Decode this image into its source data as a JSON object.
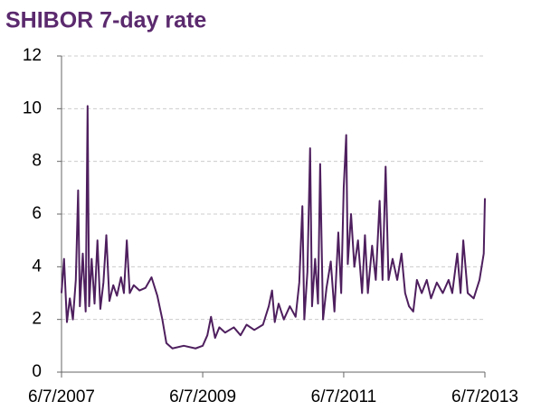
{
  "chart_data": {
    "type": "line",
    "title": "SHIBOR 7-day rate",
    "color": "#4e1f5e",
    "grid": true,
    "x": [
      "2007-06-07",
      "2007-06-20",
      "2007-07-05",
      "2007-07-20",
      "2007-08-05",
      "2007-08-20",
      "2007-09-01",
      "2007-09-10",
      "2007-09-25",
      "2007-10-10",
      "2007-10-20",
      "2007-10-28",
      "2007-11-10",
      "2007-11-25",
      "2007-12-10",
      "2007-12-25",
      "2008-01-10",
      "2008-01-25",
      "2008-02-10",
      "2008-03-01",
      "2008-03-20",
      "2008-04-10",
      "2008-04-25",
      "2008-05-10",
      "2008-05-25",
      "2008-06-15",
      "2008-07-15",
      "2008-08-15",
      "2008-09-15",
      "2008-10-15",
      "2008-11-10",
      "2008-12-01",
      "2009-01-01",
      "2009-03-01",
      "2009-05-01",
      "2009-06-07",
      "2009-07-01",
      "2009-07-20",
      "2009-08-10",
      "2009-09-01",
      "2009-10-01",
      "2009-11-15",
      "2009-12-20",
      "2010-01-20",
      "2010-03-01",
      "2010-04-15",
      "2010-05-15",
      "2010-06-01",
      "2010-06-15",
      "2010-07-05",
      "2010-08-01",
      "2010-09-01",
      "2010-10-01",
      "2010-10-20",
      "2010-11-05",
      "2010-11-15",
      "2010-12-01",
      "2010-12-15",
      "2010-12-25",
      "2011-01-10",
      "2011-01-25",
      "2011-02-05",
      "2011-02-20",
      "2011-03-10",
      "2011-04-01",
      "2011-04-20",
      "2011-05-10",
      "2011-05-25",
      "2011-06-07",
      "2011-06-20",
      "2011-06-28",
      "2011-07-15",
      "2011-08-01",
      "2011-08-20",
      "2011-09-10",
      "2011-09-25",
      "2011-10-10",
      "2011-11-01",
      "2011-11-20",
      "2011-12-10",
      "2011-12-25",
      "2012-01-10",
      "2012-01-25",
      "2012-02-15",
      "2012-03-10",
      "2012-04-01",
      "2012-04-20",
      "2012-05-10",
      "2012-06-01",
      "2012-06-20",
      "2012-07-15",
      "2012-08-10",
      "2012-09-01",
      "2012-10-01",
      "2012-11-01",
      "2012-12-01",
      "2012-12-20",
      "2013-01-15",
      "2013-02-01",
      "2013-02-15",
      "2013-03-10",
      "2013-04-10",
      "2013-05-10",
      "2013-06-01",
      "2013-06-07"
    ],
    "values": [
      3.0,
      4.3,
      1.9,
      2.8,
      2.0,
      3.5,
      6.9,
      2.5,
      4.5,
      2.3,
      10.1,
      2.5,
      4.3,
      2.6,
      5.0,
      2.4,
      3.4,
      5.2,
      2.7,
      3.3,
      2.9,
      3.6,
      3.0,
      5.0,
      3.0,
      3.3,
      3.1,
      3.2,
      3.6,
      2.9,
      2.0,
      1.1,
      0.9,
      1.0,
      0.9,
      1.0,
      1.4,
      2.1,
      1.3,
      1.7,
      1.5,
      1.7,
      1.4,
      1.8,
      1.6,
      1.8,
      2.5,
      3.1,
      1.9,
      2.6,
      2.0,
      2.5,
      2.1,
      3.4,
      6.3,
      2.0,
      3.8,
      8.5,
      2.5,
      4.3,
      2.6,
      7.9,
      2.0,
      3.2,
      4.2,
      2.3,
      5.3,
      3.0,
      7.0,
      9.0,
      4.1,
      6.0,
      4.0,
      5.0,
      3.0,
      5.2,
      3.0,
      4.8,
      3.5,
      6.5,
      3.5,
      7.8,
      3.5,
      4.3,
      3.5,
      4.5,
      3.0,
      2.5,
      2.3,
      3.5,
      3.0,
      3.5,
      2.8,
      3.4,
      3.0,
      3.5,
      3.0,
      4.5,
      3.0,
      5.0,
      3.0,
      2.8,
      3.5,
      4.5,
      6.6
    ],
    "xlim": [
      "2007-06-07",
      "2013-06-07"
    ],
    "xticks": [
      {
        "value": "2007-06-07",
        "label": "6/7/2007"
      },
      {
        "value": "2009-06-07",
        "label": "6/7/2009"
      },
      {
        "value": "2011-06-07",
        "label": "6/7/2011"
      },
      {
        "value": "2013-06-07",
        "label": "6/7/2013"
      }
    ],
    "ylim": [
      0,
      12
    ],
    "yticks": [
      0,
      2,
      4,
      6,
      8,
      10,
      12
    ]
  }
}
